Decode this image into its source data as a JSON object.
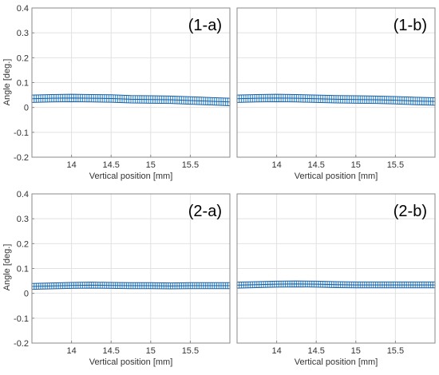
{
  "chart_data": [
    {
      "type": "line",
      "panel_label": "(1-a)",
      "xlabel": "Vertical position [mm]",
      "ylabel": "Angle [deg.]",
      "xlim": [
        13.5,
        16.0
      ],
      "ylim": [
        -0.2,
        0.4
      ],
      "xticks": [
        "14",
        "14.5",
        "15",
        "15.5"
      ],
      "yticks": [
        "-0.2",
        "-0.1",
        "0",
        "0.1",
        "0.2",
        "0.3",
        "0.4"
      ],
      "grid": true,
      "error_bars": true,
      "x": [
        13.5,
        13.75,
        14.0,
        14.25,
        14.5,
        14.75,
        15.0,
        15.25,
        15.5,
        15.75,
        16.0
      ],
      "series": [
        {
          "mean": [
            0.035,
            0.037,
            0.038,
            0.037,
            0.036,
            0.033,
            0.032,
            0.031,
            0.028,
            0.025,
            0.022
          ],
          "err": 0.015
        }
      ]
    },
    {
      "type": "line",
      "panel_label": "(1-b)",
      "xlabel": "Vertical position [mm]",
      "ylabel": "",
      "xlim": [
        13.5,
        16.0
      ],
      "ylim": [
        -0.2,
        0.4
      ],
      "xticks": [
        "14",
        "14.5",
        "15",
        "15.5"
      ],
      "yticks": [],
      "grid": true,
      "error_bars": true,
      "x": [
        13.5,
        13.75,
        14.0,
        14.25,
        14.5,
        14.75,
        15.0,
        15.25,
        15.5,
        15.75,
        16.0
      ],
      "series": [
        {
          "mean": [
            0.035,
            0.037,
            0.038,
            0.037,
            0.035,
            0.033,
            0.032,
            0.031,
            0.029,
            0.026,
            0.024
          ],
          "err": 0.015
        }
      ]
    },
    {
      "type": "line",
      "panel_label": "(2-a)",
      "xlabel": "Vertical position [mm]",
      "ylabel": "Angle [deg.]",
      "xlim": [
        13.5,
        16.0
      ],
      "ylim": [
        -0.2,
        0.4
      ],
      "xticks": [
        "14",
        "14.5",
        "15",
        "15.5"
      ],
      "yticks": [
        "-0.2",
        "-0.1",
        "0",
        "0.1",
        "0.2",
        "0.3",
        "0.4"
      ],
      "grid": true,
      "error_bars": true,
      "x": [
        13.5,
        13.75,
        14.0,
        14.25,
        14.5,
        14.75,
        15.0,
        15.25,
        15.5,
        15.75,
        16.0
      ],
      "series": [
        {
          "mean": [
            0.028,
            0.03,
            0.032,
            0.033,
            0.032,
            0.031,
            0.031,
            0.03,
            0.031,
            0.031,
            0.031
          ],
          "err": 0.012
        }
      ]
    },
    {
      "type": "line",
      "panel_label": "(2-b)",
      "xlabel": "Vertical position [mm]",
      "ylabel": "",
      "xlim": [
        13.5,
        16.0
      ],
      "ylim": [
        -0.2,
        0.4
      ],
      "xticks": [
        "14",
        "14.5",
        "15",
        "15.5"
      ],
      "yticks": [],
      "grid": true,
      "error_bars": true,
      "x": [
        13.5,
        13.75,
        14.0,
        14.25,
        14.5,
        14.75,
        15.0,
        15.25,
        15.5,
        15.75,
        16.0
      ],
      "series": [
        {
          "mean": [
            0.033,
            0.035,
            0.037,
            0.038,
            0.037,
            0.035,
            0.034,
            0.034,
            0.034,
            0.034,
            0.034
          ],
          "err": 0.012
        }
      ]
    }
  ],
  "colors": {
    "series": "#3b8fd1",
    "series_dark": "#1c5e9e",
    "grid": "#e2e2e2",
    "frame": "#888888"
  }
}
